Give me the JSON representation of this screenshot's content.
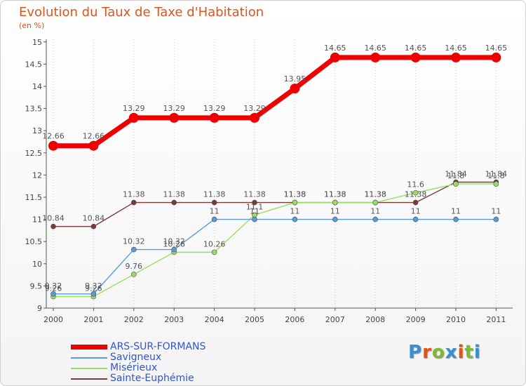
{
  "header": {
    "title": "Evolution du Taux de Taxe d'Habitation",
    "subtitle": "(en %)"
  },
  "logo": {
    "text": "Proxiti",
    "colors": [
      "#3a8fd0",
      "#e0531a",
      "#7dbb33",
      "#3a8fd0",
      "#e0531a",
      "#7dbb33",
      "#3a8fd0"
    ]
  },
  "chart_data": {
    "type": "line",
    "x": [
      "2000",
      "2001",
      "2002",
      "2003",
      "2004",
      "2005",
      "2006",
      "2007",
      "2008",
      "2009",
      "2010",
      "2011"
    ],
    "ylim": [
      9,
      15
    ],
    "yticks": [
      "9",
      "9.5",
      "10",
      "10.5",
      "11",
      "11.5",
      "12",
      "12.5",
      "13",
      "13.5",
      "14",
      "14.5",
      "15"
    ],
    "grid": "vertical dotted",
    "legend_position": "bottom-left",
    "series": [
      {
        "name": "ARS-SUR-FORMANS",
        "color": "#ee0000",
        "values": [
          12.66,
          12.66,
          13.29,
          13.29,
          13.29,
          13.29,
          13.95,
          14.65,
          14.65,
          14.65,
          14.65,
          14.65
        ],
        "labels": [
          "12.66",
          "12.66",
          "13.29",
          "13.29",
          "13.29",
          "13.29",
          "13.95",
          "14.65",
          "14.65",
          "14.65",
          "14.65",
          "14.65"
        ]
      },
      {
        "name": "Savigneux",
        "color": "#5b9bd5",
        "values": [
          9.32,
          9.32,
          10.32,
          10.32,
          11,
          11,
          11,
          11,
          11,
          11,
          11,
          11
        ],
        "labels": [
          "9.32",
          "9.32",
          "10.32",
          "10.32",
          "11",
          "11",
          "11",
          "11",
          "11",
          "11",
          "11",
          "11"
        ]
      },
      {
        "name": "Misérieux",
        "color": "#99dd66",
        "values": [
          9.26,
          9.26,
          9.76,
          10.26,
          10.26,
          11.1,
          11.38,
          11.38,
          11.38,
          11.6,
          11.8,
          11.8
        ],
        "labels": [
          "9.26",
          "9.26",
          "9.76",
          "10.26",
          "10.26",
          "11.1",
          "11.38",
          "11.38",
          "11.38",
          "11.6",
          "11.8",
          "11.8"
        ]
      },
      {
        "name": "Sainte-Euphémie",
        "color": "#7a3a3a",
        "values": [
          10.84,
          10.84,
          11.38,
          11.38,
          11.38,
          11.38,
          11.38,
          11.38,
          11.38,
          11.38,
          11.84,
          11.84
        ],
        "labels": [
          "10.84",
          "10.84",
          "11.38",
          "11.38",
          "11.38",
          "11.38",
          "11.38",
          "11.38",
          "11.38",
          "11.38",
          "11.84",
          "11.84"
        ]
      }
    ]
  }
}
